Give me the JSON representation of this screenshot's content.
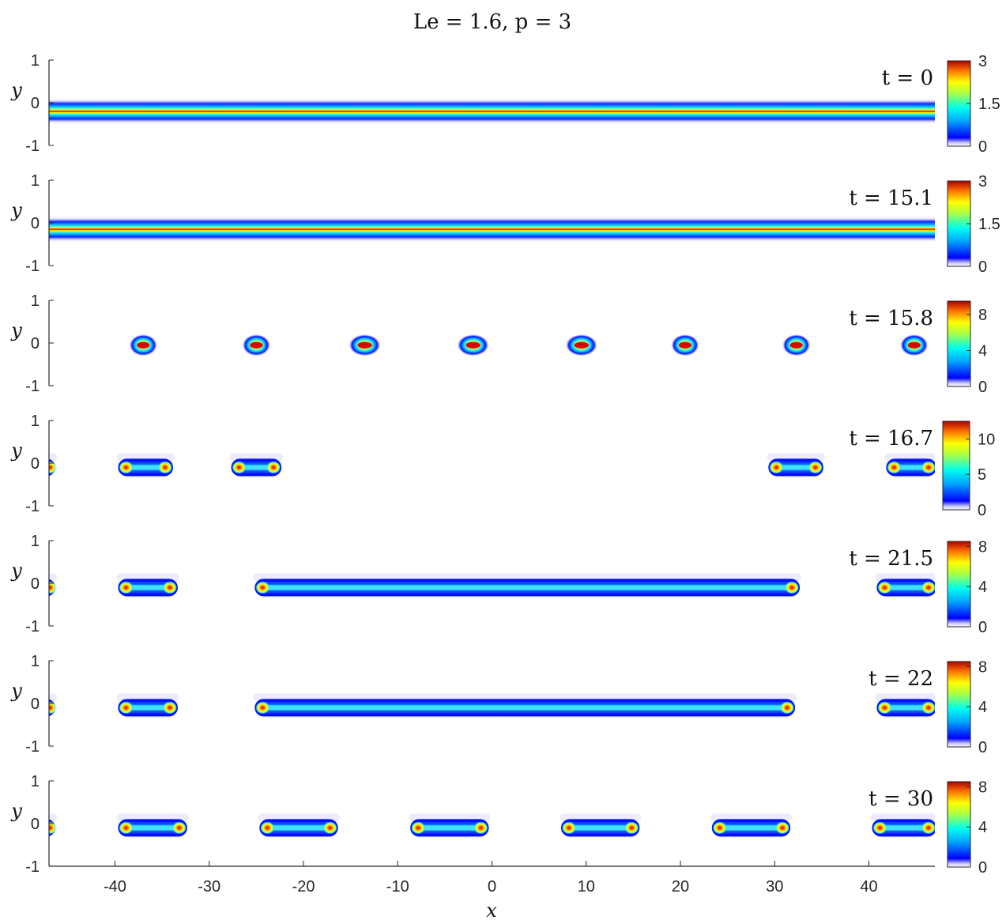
{
  "chart_data": {
    "type": "heatmap",
    "title": "Le = 1.6, p = 3",
    "xlabel": "x",
    "ylabel": "y",
    "xlim": [
      -47,
      47
    ],
    "ylim": [
      -1,
      1
    ],
    "x_ticks": [
      "-40",
      "-30",
      "-20",
      "-10",
      "0",
      "10",
      "20",
      "30",
      "40"
    ],
    "x_tick_values": [
      -40,
      -30,
      -20,
      -10,
      0,
      10,
      20,
      30,
      40
    ],
    "y_ticks": [
      "1",
      "0",
      "-1"
    ],
    "y_tick_values": [
      1,
      0,
      -1
    ],
    "colormap": "jet (white at 0)",
    "panels": [
      {
        "time_label": "t = 0",
        "colorbar_ticks": [
          "3",
          "1.5",
          "0"
        ],
        "colorbar_max": 3,
        "structures": [
          {
            "kind": "band",
            "x_start": -47,
            "x_end": 47,
            "y": -0.2,
            "peak": 3
          }
        ]
      },
      {
        "time_label": "t = 15.1",
        "colorbar_ticks": [
          "3",
          "1.5",
          "0"
        ],
        "colorbar_max": 3,
        "structures": [
          {
            "kind": "band",
            "x_start": -47,
            "x_end": 47,
            "y": -0.15,
            "peak": 2.4
          },
          {
            "kind": "neck",
            "x": -44
          },
          {
            "kind": "neck",
            "x": -33
          },
          {
            "kind": "neck",
            "x": -22
          },
          {
            "kind": "neck",
            "x": 26
          },
          {
            "kind": "neck",
            "x": 38
          }
        ]
      },
      {
        "time_label": "t = 15.8",
        "colorbar_ticks": [
          "8",
          "4",
          "0"
        ],
        "colorbar_max": 9.5,
        "structures": [
          {
            "kind": "spot",
            "x": -37,
            "width": 2,
            "y": -0.05,
            "peak": 8
          },
          {
            "kind": "spot",
            "x": -25,
            "width": 2,
            "y": -0.05,
            "peak": 8
          },
          {
            "kind": "spot",
            "x": -13.5,
            "width": 2.4,
            "y": -0.05,
            "peak": 6
          },
          {
            "kind": "spot",
            "x": -2,
            "width": 2.4,
            "y": -0.05,
            "peak": 6
          },
          {
            "kind": "spot",
            "x": 9.5,
            "width": 2.4,
            "y": -0.05,
            "peak": 6
          },
          {
            "kind": "spot",
            "x": 20.5,
            "width": 2,
            "y": -0.05,
            "peak": 8
          },
          {
            "kind": "spot",
            "x": 32.3,
            "width": 2,
            "y": -0.05,
            "peak": 8
          },
          {
            "kind": "spot",
            "x": 44.8,
            "width": 2,
            "y": -0.05,
            "peak": 9
          }
        ]
      },
      {
        "time_label": "t = 16.7",
        "colorbar_ticks": [
          "10",
          "5",
          "0"
        ],
        "colorbar_max": 12.5,
        "structures": [
          {
            "kind": "cap",
            "x": -47.5,
            "y": -0.1,
            "peak": 10
          },
          {
            "kind": "segment",
            "x_start": -39.5,
            "x_end": -34,
            "y": -0.1,
            "peak": 10
          },
          {
            "kind": "segment",
            "x_start": -27.5,
            "x_end": -22.5,
            "y": -0.1,
            "peak": 10
          },
          {
            "kind": "segment",
            "x_start": 29.5,
            "x_end": 35,
            "y": -0.1,
            "peak": 10
          },
          {
            "kind": "segment",
            "x_start": 42,
            "x_end": 47,
            "y": -0.1,
            "peak": 10
          }
        ]
      },
      {
        "time_label": "t = 21.5",
        "colorbar_ticks": [
          "8",
          "4",
          "0"
        ],
        "colorbar_max": 8.5,
        "structures": [
          {
            "kind": "cap",
            "x": -47.5,
            "y": -0.1,
            "peak": 8
          },
          {
            "kind": "segment",
            "x_start": -39.5,
            "x_end": -33.5,
            "y": -0.1,
            "peak": 8
          },
          {
            "kind": "segment",
            "x_start": -25,
            "x_end": 32.5,
            "y": -0.1,
            "peak": 8
          },
          {
            "kind": "segment",
            "x_start": 41,
            "x_end": 47,
            "y": -0.1,
            "peak": 8
          }
        ]
      },
      {
        "time_label": "t = 22",
        "colorbar_ticks": [
          "8",
          "4",
          "0"
        ],
        "colorbar_max": 8.5,
        "structures": [
          {
            "kind": "cap",
            "x": -47.5,
            "y": -0.1,
            "peak": 8
          },
          {
            "kind": "segment",
            "x_start": -39.5,
            "x_end": -33.5,
            "y": -0.1,
            "peak": 8
          },
          {
            "kind": "segment",
            "x_start": -25,
            "x_end": 32,
            "y": -0.1,
            "peak": 8
          },
          {
            "kind": "neck",
            "x": 22
          },
          {
            "kind": "segment",
            "x_start": 41,
            "x_end": 47,
            "y": -0.1,
            "peak": 8
          }
        ]
      },
      {
        "time_label": "t = 30",
        "colorbar_ticks": [
          "8",
          "4",
          "0"
        ],
        "colorbar_max": 8.5,
        "structures": [
          {
            "kind": "cap",
            "x": -47.5,
            "y": -0.1,
            "peak": 4
          },
          {
            "kind": "segment",
            "x_start": -39.5,
            "x_end": -32.5,
            "y": -0.1,
            "peak": 8
          },
          {
            "kind": "segment",
            "x_start": -24.5,
            "x_end": -16.5,
            "y": -0.1,
            "peak": 8
          },
          {
            "kind": "segment",
            "x_start": -8.5,
            "x_end": -0.5,
            "y": -0.1,
            "peak": 8
          },
          {
            "kind": "segment",
            "x_start": 7.5,
            "x_end": 15.5,
            "y": -0.1,
            "peak": 8
          },
          {
            "kind": "segment",
            "x_start": 23.5,
            "x_end": 31.5,
            "y": -0.1,
            "peak": 8
          },
          {
            "kind": "segment",
            "x_start": 40.5,
            "x_end": 47,
            "y": -0.1,
            "peak": 8
          }
        ]
      }
    ]
  }
}
